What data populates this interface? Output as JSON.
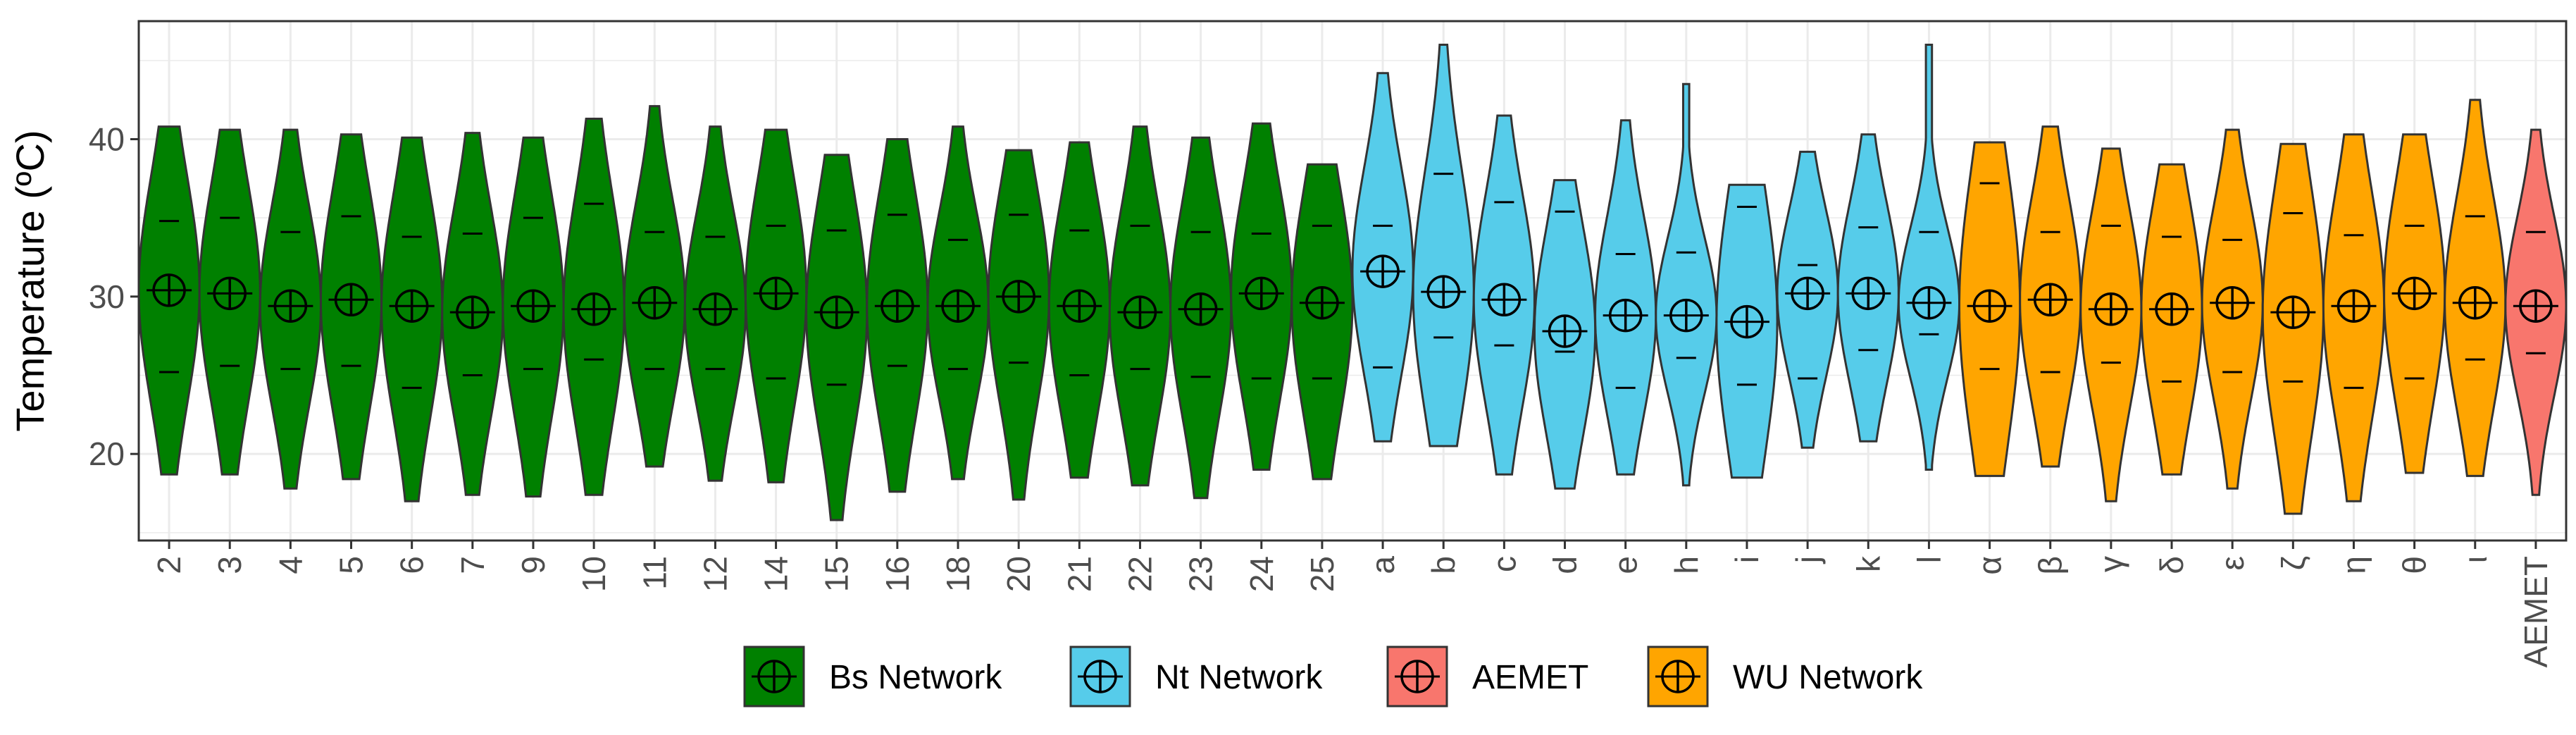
{
  "chart_data": {
    "type": "violin",
    "title": "",
    "xlabel": "",
    "ylabel": "Temperature (ºC)",
    "ylim": [
      14.5,
      47.5
    ],
    "yticks": [
      20,
      30,
      40
    ],
    "grid": true,
    "legend": {
      "position": "bottom",
      "entries": [
        {
          "label": "Bs Network",
          "color": "#008000"
        },
        {
          "label": "Nt Network",
          "color": "#56CCEA"
        },
        {
          "label": "AEMET",
          "color": "#F8766D"
        },
        {
          "label": "WU Network",
          "color": "#FFA500"
        }
      ]
    },
    "series": [
      {
        "name": "Bs Network",
        "color": "#008000",
        "categories": [
          "2",
          "3",
          "4",
          "5",
          "6",
          "7",
          "9",
          "10",
          "11",
          "12",
          "14",
          "15",
          "16",
          "18",
          "20",
          "21",
          "22",
          "23",
          "24",
          "25"
        ]
      },
      {
        "name": "Nt Network",
        "color": "#56CCEA",
        "categories": [
          "a",
          "b",
          "c",
          "d",
          "e",
          "h",
          "i",
          "j",
          "k",
          "l"
        ]
      },
      {
        "name": "WU Network",
        "color": "#FFA500",
        "categories": [
          "α",
          "β",
          "γ",
          "δ",
          "ε",
          "ζ",
          "η",
          "θ",
          "ι"
        ]
      },
      {
        "name": "AEMET",
        "color": "#F8766D",
        "categories": [
          "AEMET"
        ]
      }
    ],
    "categories": [
      "2",
      "3",
      "4",
      "5",
      "6",
      "7",
      "9",
      "10",
      "11",
      "12",
      "14",
      "15",
      "16",
      "18",
      "20",
      "21",
      "22",
      "23",
      "24",
      "25",
      "a",
      "b",
      "c",
      "d",
      "e",
      "h",
      "i",
      "j",
      "k",
      "l",
      "α",
      "β",
      "γ",
      "δ",
      "ε",
      "ζ",
      "η",
      "θ",
      "ι",
      "AEMET"
    ],
    "groups": [
      "Bs Network",
      "Bs Network",
      "Bs Network",
      "Bs Network",
      "Bs Network",
      "Bs Network",
      "Bs Network",
      "Bs Network",
      "Bs Network",
      "Bs Network",
      "Bs Network",
      "Bs Network",
      "Bs Network",
      "Bs Network",
      "Bs Network",
      "Bs Network",
      "Bs Network",
      "Bs Network",
      "Bs Network",
      "Bs Network",
      "Nt Network",
      "Nt Network",
      "Nt Network",
      "Nt Network",
      "Nt Network",
      "Nt Network",
      "Nt Network",
      "Nt Network",
      "Nt Network",
      "Nt Network",
      "WU Network",
      "WU Network",
      "WU Network",
      "WU Network",
      "WU Network",
      "WU Network",
      "WU Network",
      "WU Network",
      "WU Network",
      "AEMET"
    ],
    "min": [
      18.7,
      18.7,
      17.8,
      18.4,
      17.0,
      17.4,
      17.3,
      17.4,
      19.2,
      18.3,
      18.2,
      15.8,
      17.6,
      18.4,
      17.1,
      18.5,
      18.0,
      17.2,
      19.0,
      18.4,
      20.8,
      20.5,
      18.7,
      17.8,
      18.7,
      18.0,
      18.5,
      20.4,
      20.8,
      19.0,
      18.6,
      19.2,
      17.0,
      18.7,
      17.8,
      16.2,
      17.0,
      18.8,
      18.6,
      17.4
    ],
    "max": [
      40.8,
      40.6,
      40.6,
      40.3,
      40.1,
      40.4,
      40.1,
      41.3,
      42.1,
      40.8,
      40.6,
      39.0,
      40.0,
      40.8,
      39.3,
      39.8,
      40.8,
      40.1,
      41.0,
      38.4,
      44.2,
      46.0,
      41.5,
      37.4,
      41.2,
      43.5,
      37.1,
      39.2,
      40.3,
      46.0,
      39.8,
      40.8,
      39.4,
      38.4,
      40.6,
      39.7,
      40.3,
      40.3,
      42.5,
      40.6
    ],
    "q25": [
      25.2,
      25.6,
      25.4,
      25.6,
      24.2,
      25.0,
      25.4,
      26.0,
      25.4,
      25.4,
      24.8,
      24.4,
      25.6,
      25.4,
      25.8,
      25.0,
      25.4,
      24.9,
      24.8,
      24.8,
      25.5,
      27.4,
      26.9,
      26.5,
      24.2,
      26.1,
      24.4,
      24.8,
      26.6,
      27.6,
      25.4,
      25.2,
      25.8,
      24.6,
      25.2,
      24.6,
      24.2,
      24.8,
      26.0,
      26.4
    ],
    "median": [
      30.4,
      30.2,
      29.4,
      29.8,
      29.4,
      29.0,
      29.4,
      29.2,
      29.6,
      29.2,
      30.2,
      29.0,
      29.4,
      29.4,
      30.0,
      29.4,
      29.0,
      29.2,
      30.2,
      29.6,
      31.6,
      30.3,
      29.8,
      27.8,
      28.8,
      28.8,
      28.4,
      30.2,
      30.2,
      29.6,
      29.4,
      29.8,
      29.2,
      29.2,
      29.6,
      29.0,
      29.4,
      30.2,
      29.6,
      29.4
    ],
    "q75": [
      34.8,
      35.0,
      34.1,
      35.1,
      33.8,
      34.0,
      35.0,
      35.9,
      34.1,
      33.8,
      34.5,
      34.2,
      35.2,
      33.6,
      35.2,
      34.2,
      34.5,
      34.1,
      34.0,
      34.5,
      34.5,
      37.8,
      36.0,
      35.4,
      32.7,
      32.8,
      35.7,
      32.0,
      34.4,
      34.1,
      37.2,
      34.1,
      34.5,
      33.8,
      33.6,
      35.3,
      33.9,
      34.5,
      35.1,
      34.1
    ]
  }
}
